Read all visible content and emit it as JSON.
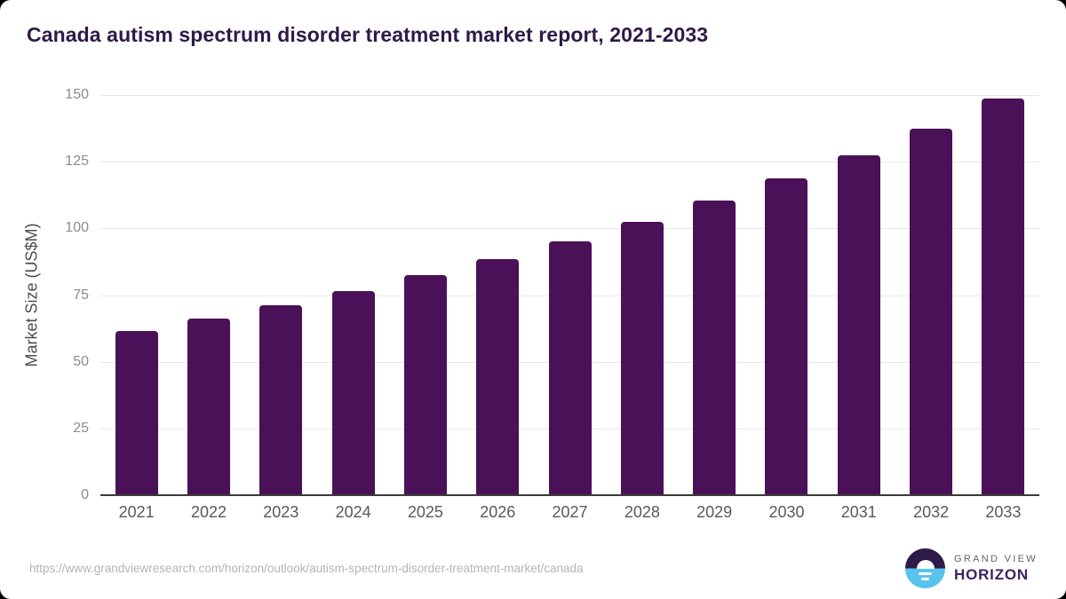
{
  "title": "Canada autism spectrum disorder treatment market report, 2021-2033",
  "footer": {
    "source_url": "https://www.grandviewresearch.com/horizon/outlook/autism-spectrum-disorder-treatment-market/canada",
    "logo": {
      "top_text": "GRAND VIEW",
      "bottom_text": "HORIZON"
    }
  },
  "colors": {
    "bar": "#4a1158",
    "title_text": "#2e1a47",
    "gridline": "#e8e8e8",
    "axis_line": "#3a3a3a",
    "y_tick_label": "#8c8c8c",
    "y_axis_title": "#4d4d4d",
    "x_label": "#595959",
    "source_url": "#b5b5b5",
    "logo_top_half": "#2e1a47",
    "logo_bottom_half": "#58c3ef",
    "logo_horizon_text": "#3d2462",
    "logo_grandview_text": "#63636e"
  },
  "chart_data": {
    "type": "bar",
    "title": "Canada autism spectrum disorder treatment market report, 2021-2033",
    "categories": [
      "2021",
      "2022",
      "2023",
      "2024",
      "2025",
      "2026",
      "2027",
      "2028",
      "2029",
      "2030",
      "2031",
      "2032",
      "2033"
    ],
    "values": [
      61.5,
      66.2,
      71.1,
      76.4,
      82.4,
      88.5,
      95.2,
      102.3,
      110.4,
      118.6,
      127.4,
      137.3,
      148.6
    ],
    "xlabel": "",
    "ylabel": "Market Size (US$M)",
    "ylim": [
      0,
      150
    ],
    "yticks": [
      0,
      25,
      50,
      75,
      100,
      125,
      150
    ],
    "grid": true,
    "legend": false,
    "bar_color": "#4a1158"
  }
}
